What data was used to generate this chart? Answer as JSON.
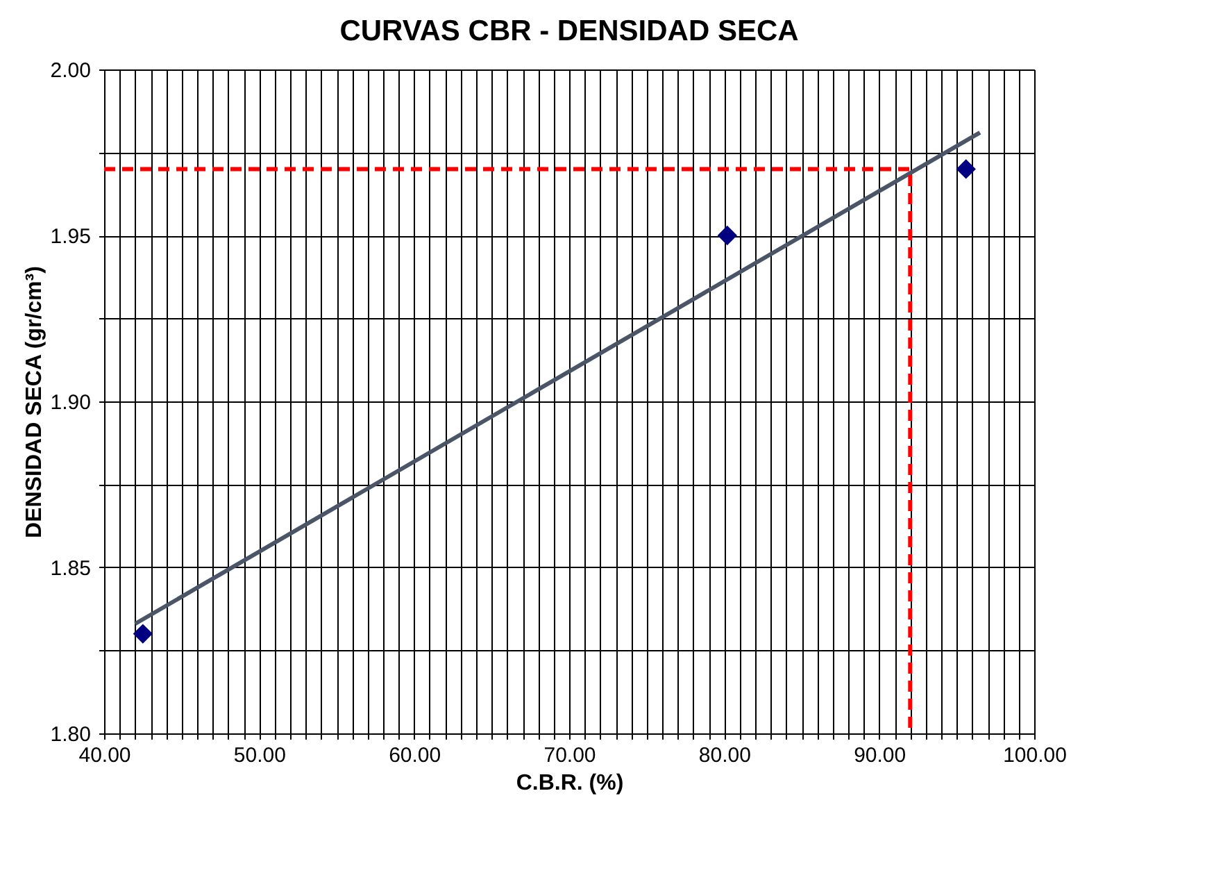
{
  "chart_data": {
    "type": "scatter",
    "title": "CURVAS CBR - DENSIDAD SECA",
    "xlabel": "C.B.R. (%)",
    "ylabel": "DENSIDAD SECA (gr/cm³)",
    "xlim": [
      40,
      100
    ],
    "ylim": [
      1.8,
      2.0
    ],
    "xticks": [
      {
        "value": 40,
        "label": "40.00"
      },
      {
        "value": 41,
        "label": null
      },
      {
        "value": 42,
        "label": null
      },
      {
        "value": 43,
        "label": null
      },
      {
        "value": 44,
        "label": null
      },
      {
        "value": 45,
        "label": null
      },
      {
        "value": 46,
        "label": null
      },
      {
        "value": 47,
        "label": null
      },
      {
        "value": 48,
        "label": null
      },
      {
        "value": 49,
        "label": null
      },
      {
        "value": 50,
        "label": "50.00"
      },
      {
        "value": 51,
        "label": null
      },
      {
        "value": 52,
        "label": null
      },
      {
        "value": 53,
        "label": null
      },
      {
        "value": 54,
        "label": null
      },
      {
        "value": 55,
        "label": null
      },
      {
        "value": 56,
        "label": null
      },
      {
        "value": 57,
        "label": null
      },
      {
        "value": 58,
        "label": null
      },
      {
        "value": 59,
        "label": null
      },
      {
        "value": 60,
        "label": "60.00"
      },
      {
        "value": 61,
        "label": null
      },
      {
        "value": 62,
        "label": null
      },
      {
        "value": 63,
        "label": null
      },
      {
        "value": 64,
        "label": null
      },
      {
        "value": 65,
        "label": null
      },
      {
        "value": 66,
        "label": null
      },
      {
        "value": 67,
        "label": null
      },
      {
        "value": 68,
        "label": null
      },
      {
        "value": 69,
        "label": null
      },
      {
        "value": 70,
        "label": "70.00"
      },
      {
        "value": 71,
        "label": null
      },
      {
        "value": 72,
        "label": null
      },
      {
        "value": 73,
        "label": null
      },
      {
        "value": 74,
        "label": null
      },
      {
        "value": 75,
        "label": null
      },
      {
        "value": 76,
        "label": null
      },
      {
        "value": 77,
        "label": null
      },
      {
        "value": 78,
        "label": null
      },
      {
        "value": 79,
        "label": null
      },
      {
        "value": 80,
        "label": "80.00"
      },
      {
        "value": 81,
        "label": null
      },
      {
        "value": 82,
        "label": null
      },
      {
        "value": 83,
        "label": null
      },
      {
        "value": 84,
        "label": null
      },
      {
        "value": 85,
        "label": null
      },
      {
        "value": 86,
        "label": null
      },
      {
        "value": 87,
        "label": null
      },
      {
        "value": 88,
        "label": null
      },
      {
        "value": 89,
        "label": null
      },
      {
        "value": 90,
        "label": "90.00"
      },
      {
        "value": 91,
        "label": null
      },
      {
        "value": 92,
        "label": null
      },
      {
        "value": 93,
        "label": null
      },
      {
        "value": 94,
        "label": null
      },
      {
        "value": 95,
        "label": null
      },
      {
        "value": 96,
        "label": null
      },
      {
        "value": 97,
        "label": null
      },
      {
        "value": 98,
        "label": null
      },
      {
        "value": 99,
        "label": null
      },
      {
        "value": 100,
        "label": "100.00"
      }
    ],
    "yticks": [
      {
        "value": 1.8,
        "label": "1.80"
      },
      {
        "value": 1.825,
        "label": null
      },
      {
        "value": 1.85,
        "label": "1.85"
      },
      {
        "value": 1.875,
        "label": null
      },
      {
        "value": 1.9,
        "label": "1.90"
      },
      {
        "value": 1.925,
        "label": null
      },
      {
        "value": 1.95,
        "label": "1.95"
      },
      {
        "value": 1.975,
        "label": null
      },
      {
        "value": 2.0,
        "label": "2.00"
      }
    ],
    "grid": true,
    "series": [
      {
        "type": "line",
        "color": "#4a5568",
        "line_style": "solid",
        "x": [
          42.0,
          96.5
        ],
        "values": [
          1.833,
          1.981
        ]
      },
      {
        "type": "line",
        "color": "#ff0000",
        "line_style": "dashed",
        "x": [
          40,
          92,
          92
        ],
        "values": [
          1.97,
          1.97,
          1.8
        ]
      },
      {
        "color": "#000080",
        "marker": "diamond",
        "x": [
          42.5,
          80.2,
          95.6
        ],
        "values": [
          1.83,
          1.95,
          1.97
        ]
      }
    ]
  }
}
